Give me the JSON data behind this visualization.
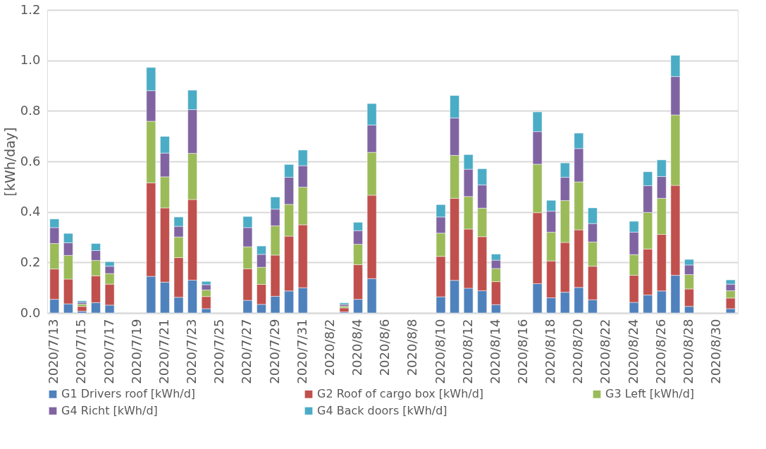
{
  "chart_data": {
    "type": "bar",
    "stacked": true,
    "ylabel": "[kWh/day]",
    "ylim": [
      0,
      1.2
    ],
    "yticks": [
      {
        "value": 0,
        "label": "0.0"
      },
      {
        "value": 0.2,
        "label": "0.2"
      },
      {
        "value": 0.4,
        "label": "0.4"
      },
      {
        "value": 0.6,
        "label": "0.6"
      },
      {
        "value": 0.8,
        "label": "0.8"
      },
      {
        "value": 1.0,
        "label": "1.0"
      },
      {
        "value": 1.2,
        "label": "1.2"
      }
    ],
    "grid": "y",
    "legend": "bottom",
    "categories": [
      "2020/7/13",
      null,
      "2020/7/15",
      null,
      "2020/7/17",
      null,
      "2020/7/19",
      null,
      "2020/7/21",
      null,
      "2020/7/23",
      null,
      "2020/7/25",
      null,
      "2020/7/27",
      null,
      "2020/7/29",
      null,
      "2020/7/31",
      null,
      "2020/8/2",
      null,
      "2020/8/4",
      null,
      "2020/8/6",
      null,
      "2020/8/8",
      null,
      "2020/8/10",
      null,
      "2020/8/12",
      null,
      "2020/8/14",
      null,
      "2020/8/16",
      null,
      "2020/8/18",
      null,
      "2020/8/20",
      null,
      "2020/8/22",
      null,
      "2020/8/24",
      null,
      "2020/8/26",
      null,
      "2020/8/28",
      null,
      "2020/8/30",
      null
    ],
    "series": [
      {
        "name": "G1 Drivers roof [kWh/d]",
        "color": "#4f81bd",
        "values": [
          0.054,
          0.036,
          0.007,
          0.041,
          0.031,
          null,
          null,
          0.145,
          0.122,
          0.062,
          0.13,
          0.017,
          null,
          null,
          0.05,
          0.034,
          0.066,
          0.087,
          0.1,
          null,
          null,
          0.004,
          0.054,
          0.136,
          null,
          null,
          null,
          null,
          0.064,
          0.129,
          0.098,
          0.088,
          0.033,
          null,
          null,
          0.116,
          0.06,
          0.082,
          0.101,
          0.052,
          null,
          null,
          0.042,
          0.071,
          0.087,
          0.149,
          0.026,
          null,
          null,
          0.017
        ]
      },
      {
        "name": "G2 Roof of cargo box [kWh/d]",
        "color": "#c0504d",
        "values": [
          0.12,
          0.098,
          0.019,
          0.106,
          0.083,
          null,
          null,
          0.37,
          0.294,
          0.157,
          0.319,
          0.048,
          null,
          null,
          0.125,
          0.079,
          0.163,
          0.217,
          0.249,
          null,
          null,
          0.016,
          0.137,
          0.33,
          null,
          null,
          null,
          null,
          0.16,
          0.325,
          0.234,
          0.214,
          0.091,
          null,
          null,
          0.281,
          0.146,
          0.197,
          0.228,
          0.133,
          null,
          null,
          0.107,
          0.182,
          0.224,
          0.356,
          0.069,
          null,
          null,
          0.042
        ]
      },
      {
        "name": "G3 Left [kWh/d]",
        "color": "#9bbb59",
        "values": [
          0.101,
          0.094,
          0.009,
          0.061,
          0.042,
          null,
          null,
          0.244,
          0.123,
          0.082,
          0.183,
          0.026,
          null,
          null,
          0.087,
          0.068,
          0.116,
          0.126,
          0.149,
          null,
          null,
          0.007,
          0.081,
          0.17,
          null,
          null,
          null,
          null,
          0.092,
          0.17,
          0.129,
          0.113,
          0.052,
          null,
          null,
          0.192,
          0.114,
          0.166,
          0.19,
          0.096,
          null,
          null,
          0.082,
          0.145,
          0.143,
          0.279,
          0.057,
          null,
          null,
          0.029
        ]
      },
      {
        "name": "G4 Richt [kWh/d]",
        "color": "#8064a2",
        "values": [
          0.063,
          0.05,
          0.007,
          0.039,
          0.029,
          null,
          null,
          0.121,
          0.094,
          0.042,
          0.173,
          0.021,
          null,
          null,
          0.076,
          0.051,
          0.066,
          0.107,
          0.085,
          null,
          null,
          0.007,
          0.054,
          0.108,
          null,
          null,
          null,
          null,
          0.064,
          0.148,
          0.108,
          0.092,
          0.033,
          null,
          null,
          0.129,
          0.083,
          0.092,
          0.132,
          0.073,
          null,
          null,
          0.089,
          0.106,
          0.086,
          0.152,
          0.038,
          null,
          null,
          0.026
        ]
      },
      {
        "name": "G4 Back doors [kWh/d]",
        "color": "#4bacc6",
        "values": [
          0.034,
          0.037,
          0.006,
          0.028,
          0.018,
          null,
          null,
          0.092,
          0.066,
          0.037,
          0.077,
          0.013,
          null,
          null,
          0.044,
          0.033,
          0.048,
          0.051,
          0.062,
          null,
          null,
          0.006,
          0.033,
          0.085,
          null,
          null,
          null,
          null,
          0.049,
          0.089,
          0.058,
          0.064,
          0.024,
          null,
          null,
          0.078,
          0.043,
          0.057,
          0.061,
          0.062,
          null,
          null,
          0.043,
          0.055,
          0.066,
          0.084,
          0.022,
          null,
          null,
          0.017
        ]
      }
    ]
  }
}
